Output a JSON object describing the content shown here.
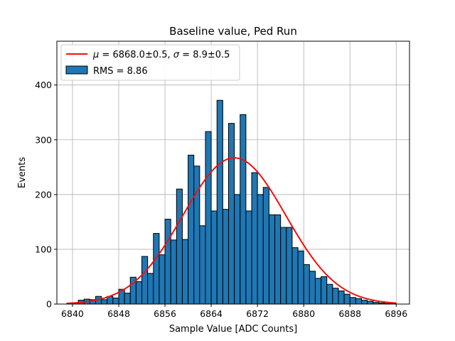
{
  "chart_data": {
    "type": "bar",
    "title": "Baseline value, Ped Run",
    "xlabel": "Sample Value [ADC Counts]",
    "ylabel": "Events",
    "xlim": [
      6837.3,
      6898.3
    ],
    "ylim": [
      0,
      480
    ],
    "xticks": [
      6840,
      6848,
      6856,
      6864,
      6872,
      6880,
      6888,
      6896
    ],
    "yticks": [
      0,
      100,
      200,
      300,
      400
    ],
    "grid": true,
    "legend_position": "top-left",
    "bin_width": 1,
    "bin_start": 6839,
    "bin_values": [
      1,
      2,
      7,
      9,
      8,
      14,
      8,
      14,
      11,
      27,
      20,
      49,
      41,
      87,
      56,
      129,
      90,
      155,
      117,
      210,
      118,
      272,
      252,
      143,
      315,
      170,
      372,
      173,
      330,
      200,
      346,
      170,
      240,
      200,
      213,
      163,
      163,
      140,
      140,
      103,
      97,
      72,
      60,
      47,
      50,
      36,
      29,
      24,
      18,
      12,
      10,
      7,
      5,
      3,
      2,
      1,
      1
    ],
    "fit": {
      "type": "gaussian",
      "mu": 6868.0,
      "sigma": 8.9,
      "amplitude": 267,
      "legend_mu": "6868.0±0.5",
      "legend_sigma": "8.9±0.5",
      "color": "#ee1111"
    },
    "legend": [
      {
        "type": "line",
        "color": "#ee1111"
      },
      {
        "type": "patch",
        "label": "RMS = 8.86",
        "color": "#1f77b4"
      }
    ],
    "bar_color": "#1f77b4",
    "edge_color": "#000000"
  }
}
